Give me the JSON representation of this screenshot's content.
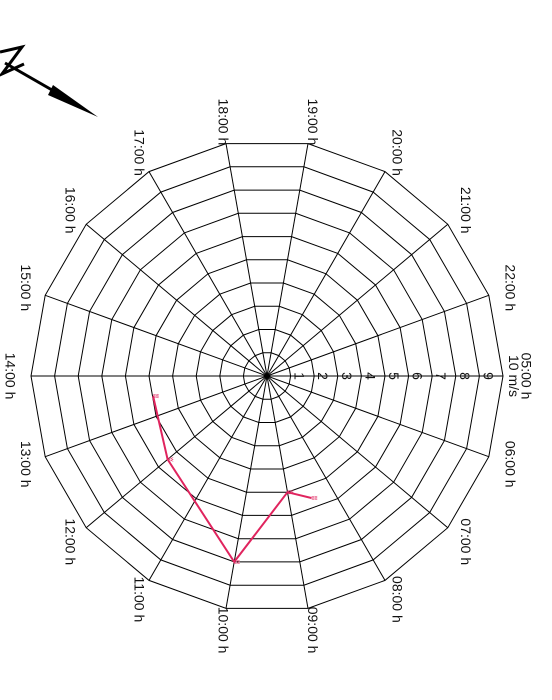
{
  "chart_data": {
    "type": "line",
    "subtype": "polar-wind",
    "title": "",
    "angular_labels": [
      "05:00 h",
      "06:00 h",
      "07:00 h",
      "08:00 h",
      "09:00 h",
      "10:00 h",
      "11:00 h",
      "12:00 h",
      "13:00 h",
      "14:00 h",
      "15:00 h",
      "16:00 h",
      "17:00 h",
      "18:00 h",
      "19:00 h",
      "20:00 h",
      "21:00 h",
      "22:00 h"
    ],
    "radial_ticks": [
      "1",
      "2",
      "3",
      "4",
      "5",
      "6",
      "7",
      "8",
      "9",
      "10 m/s"
    ],
    "radial_range": [
      0,
      10
    ],
    "series": [
      {
        "color": "#e0245e",
        "points": [
          {
            "time": "08:30 h",
            "speed": 5.5
          },
          {
            "time": "09:00 h",
            "speed": 5.0
          },
          {
            "time": "10:00 h",
            "speed": 8.0
          },
          {
            "time": "12:00 h",
            "speed": 5.5
          },
          {
            "time": "13:30 h",
            "speed": 4.9
          }
        ]
      }
    ],
    "barb_symbol": "ʬ",
    "north_arrow": "present",
    "grid": true
  }
}
